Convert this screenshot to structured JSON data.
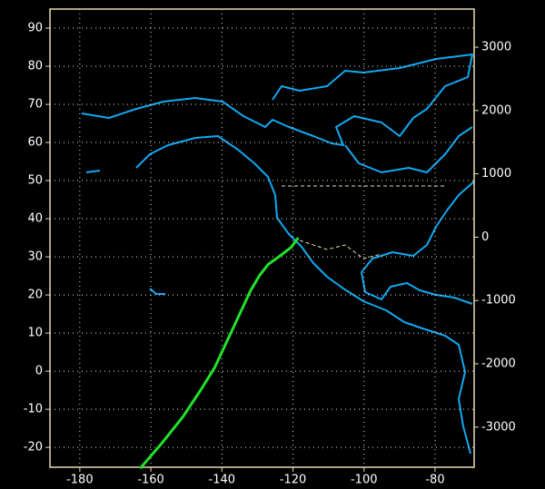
{
  "chart_data": {
    "type": "line",
    "xlim": [
      -188.4,
      -69
    ],
    "xticks": [
      -180,
      -160,
      -140,
      -120,
      -100,
      -80
    ],
    "ylim": [
      -25.2,
      95
    ],
    "yticks": [
      -20,
      -10,
      0,
      10,
      20,
      30,
      40,
      50,
      60,
      70,
      80,
      90
    ],
    "y2lim": [
      -3633,
      3602
    ],
    "y2ticks": [
      -3000,
      -2000,
      -1000,
      0,
      1000,
      2000,
      3000
    ],
    "grid": true,
    "series": [
      {
        "color": "#22e22a",
        "x": [
          -118.5,
          -120.5,
          -124,
          -127,
          -129.5,
          -132,
          -135,
          -138.5,
          -142,
          -146,
          -151,
          -157,
          -163
        ],
        "values": [
          35,
          32.5,
          30,
          28,
          25,
          21,
          15,
          8,
          1,
          -5,
          -12,
          -19,
          -25.5
        ]
      }
    ]
  }
}
